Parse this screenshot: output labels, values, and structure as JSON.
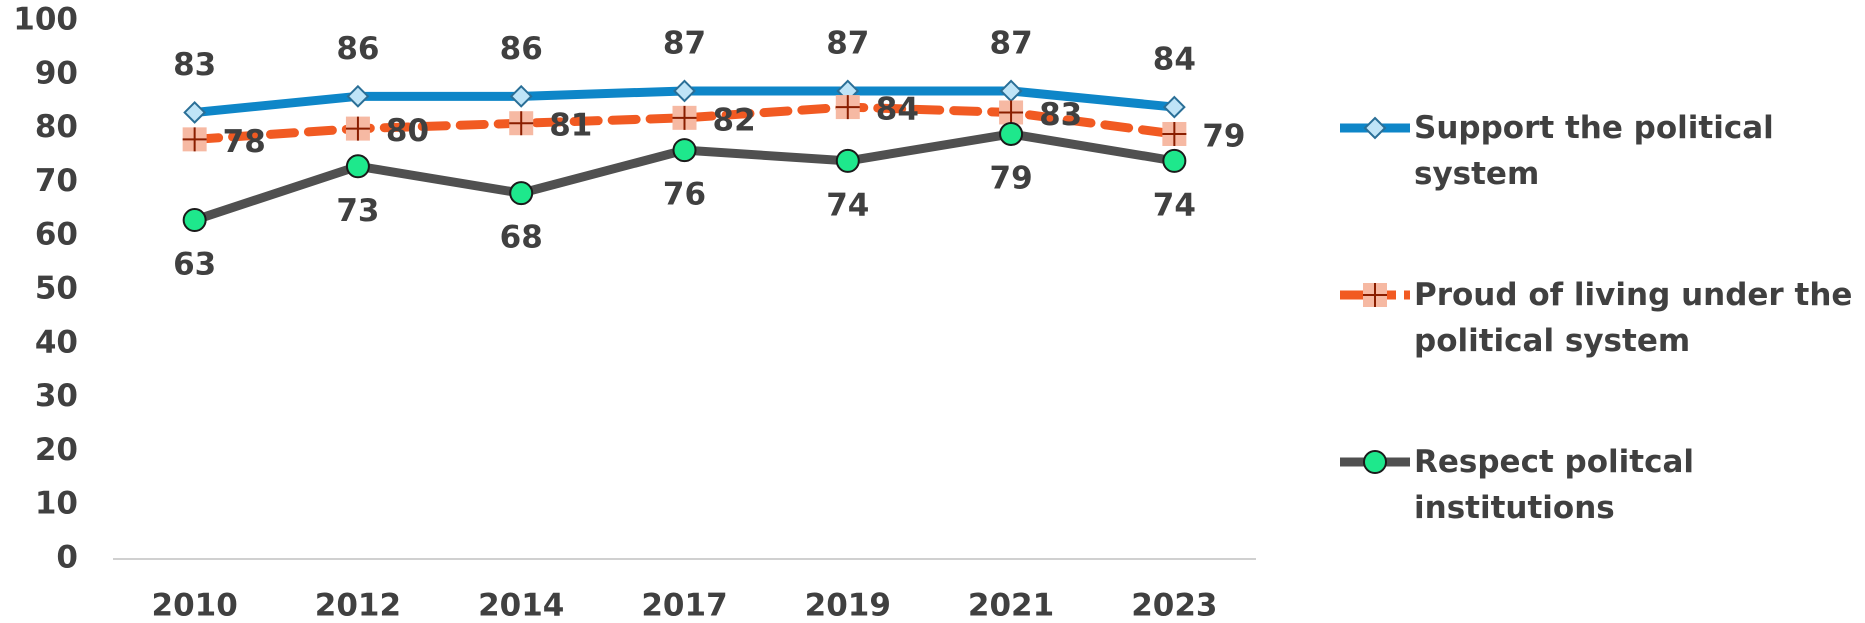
{
  "chart_data": {
    "type": "line",
    "categories": [
      "2010",
      "2012",
      "2014",
      "2017",
      "2019",
      "2021",
      "2023"
    ],
    "series": [
      {
        "name": "Support the political system",
        "color": "#0e86c8",
        "marker": "diamond",
        "marker_color": "#bfe4f7",
        "values": [
          83,
          86,
          86,
          87,
          87,
          87,
          84
        ]
      },
      {
        "name": "Proud of living under the political system",
        "color": "#f15a22",
        "dash": true,
        "marker": "plus-square",
        "marker_color": "#f6b9a3",
        "values": [
          78,
          80,
          81,
          82,
          84,
          83,
          79
        ]
      },
      {
        "name": "Respect politcal institutions",
        "color": "#505050",
        "marker": "circle",
        "marker_color": "#1ee88c",
        "values": [
          63,
          73,
          68,
          76,
          74,
          79,
          74
        ]
      }
    ],
    "ylim": [
      0,
      100
    ],
    "yticks": [
      0,
      10,
      20,
      30,
      40,
      50,
      60,
      70,
      80,
      90,
      100
    ],
    "legend": "right"
  }
}
